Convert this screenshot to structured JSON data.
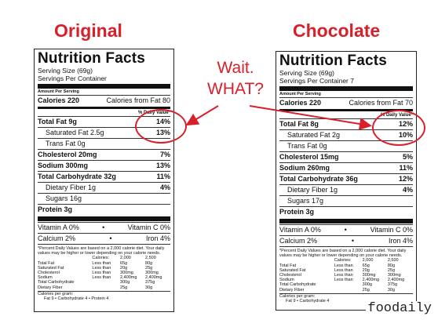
{
  "headings": {
    "left": "Original",
    "right": "Chocolate"
  },
  "callout": {
    "line1": "Wait.",
    "line2": "WHAT?"
  },
  "brand": "foodaily",
  "accent_color": "#d8202a",
  "labels": [
    {
      "title": "Nutrition Facts",
      "serving_size": "Serving Size (69g)",
      "servings": "Servings Per Container",
      "amount_per": "Amount Per Serving",
      "calories": "Calories 220",
      "calories_fat": "Calories from Fat 80",
      "dv_head": "% Daily Value*",
      "rows": [
        {
          "k": "Total Fat 9g",
          "v": "14%"
        },
        {
          "k": "Saturated Fat 2.5g",
          "v": "13%"
        },
        {
          "k": "Trans Fat 0g",
          "v": ""
        },
        {
          "k": "Cholesterol 20mg",
          "v": "7%"
        },
        {
          "k": "Sodium 300mg",
          "v": "13%"
        },
        {
          "k": "Total Carbohydrate 32g",
          "v": "11%"
        },
        {
          "k": "Dietary Fiber 1g",
          "v": "4%"
        },
        {
          "k": "Sugars 16g",
          "v": ""
        },
        {
          "k": "Protein 3g",
          "v": ""
        }
      ],
      "vit1_a": "Vitamin A 0%",
      "vit1_b": "Vitamin C 0%",
      "vit2_a": "Calcium 2%",
      "vit2_b": "Iron 4%",
      "footnote": "*Percent Daily Values are based on a 2,000 calorie diet. Your daily values may be higher or lower depending on your calorie needs.",
      "table": [
        [
          "",
          "Calories:",
          "2,000",
          "2,500"
        ],
        [
          "Total Fat",
          "Less than",
          "65g",
          "80g"
        ],
        [
          "Saturated Fat",
          "Less than",
          "20g",
          "25g"
        ],
        [
          "Cholesterol",
          "Less than",
          "300mg",
          "300mg"
        ],
        [
          "Sodium",
          "Less than",
          "2,400mg",
          "2,400mg"
        ],
        [
          "Total Carbohydrate",
          "",
          "300g",
          "375g"
        ],
        [
          "Dietary Fiber",
          "",
          "25g",
          "30g"
        ]
      ],
      "cal_per_gram": "Calories per gram:",
      "cal_per_gram_values": "Fat 9 • Carbohydrate 4 • Protein 4"
    },
    {
      "title": "Nutrition Facts",
      "serving_size": "Serving Size (69g)",
      "servings": "Servings Per Container 7",
      "amount_per": "Amount Per Serving",
      "calories": "Calories 220",
      "calories_fat": "Calories from Fat 70",
      "dv_head": "% Daily Value*",
      "rows": [
        {
          "k": "Total Fat 8g",
          "v": "12%"
        },
        {
          "k": "Saturated Fat 2g",
          "v": "10%"
        },
        {
          "k": "Trans Fat 0g",
          "v": ""
        },
        {
          "k": "Cholesterol 15mg",
          "v": "5%"
        },
        {
          "k": "Sodium 260mg",
          "v": "11%"
        },
        {
          "k": "Total Carbohydrate 36g",
          "v": "12%"
        },
        {
          "k": "Dietary Fiber 1g",
          "v": "4%"
        },
        {
          "k": "Sugars 17g",
          "v": ""
        },
        {
          "k": "Protein 3g",
          "v": ""
        }
      ],
      "vit1_a": "Vitamin A 0%",
      "vit1_b": "Vitamin C 0%",
      "vit2_a": "Calcium 2%",
      "vit2_b": "Iron 4%",
      "footnote": "*Percent Daily Values are based on a 2,000 calorie diet. Your daily values may be higher or lower depending on your calorie needs.",
      "table": [
        [
          "",
          "Calories:",
          "2,000",
          "2,500"
        ],
        [
          "Total Fat",
          "Less than",
          "65g",
          "80g"
        ],
        [
          "Saturated Fat",
          "Less than",
          "20g",
          "25g"
        ],
        [
          "Cholesterol",
          "Less than",
          "300mg",
          "300mg"
        ],
        [
          "Sodium",
          "Less than",
          "2,400mg",
          "2,400mg"
        ],
        [
          "Total Carbohydrate",
          "",
          "300g",
          "375g"
        ],
        [
          "Dietary Fiber",
          "",
          "25g",
          "30g"
        ]
      ],
      "cal_per_gram": "Calories per gram:",
      "cal_per_gram_values": "Fat 9 • Carbohydrate 4"
    }
  ]
}
